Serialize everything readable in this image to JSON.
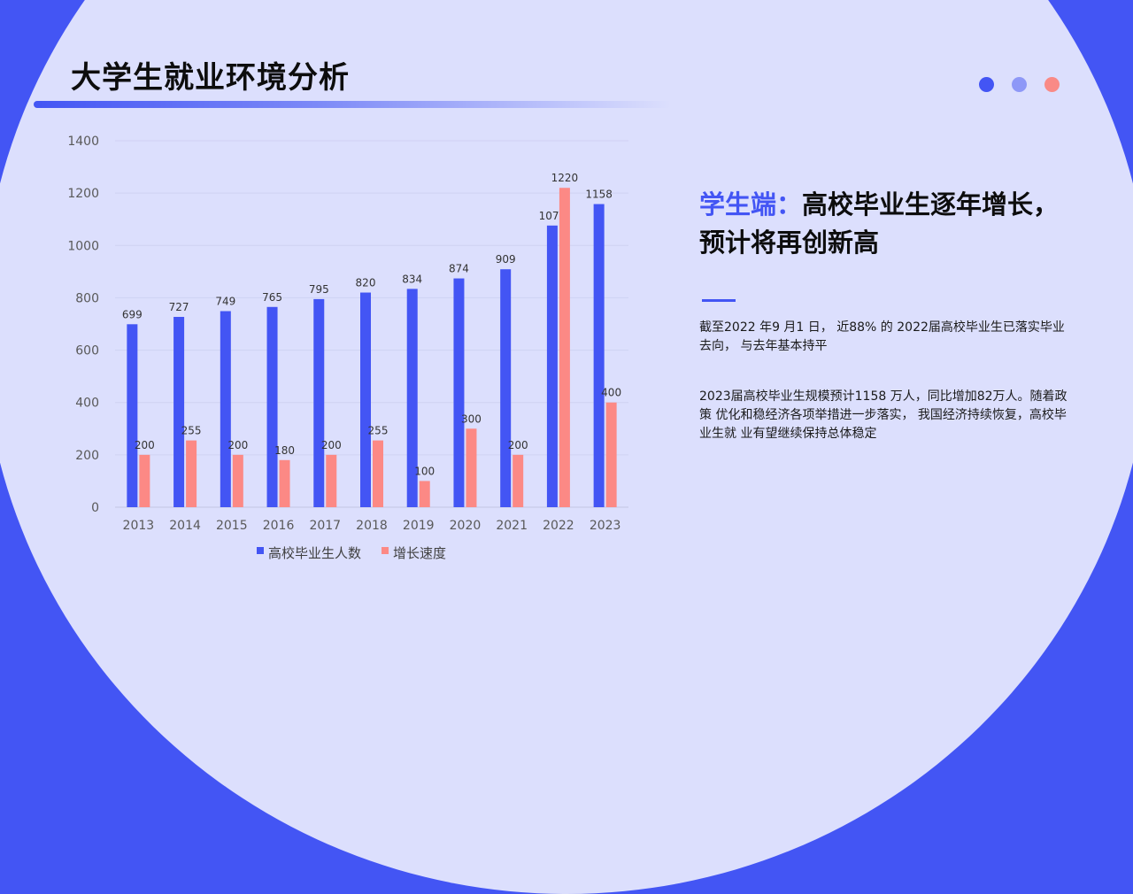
{
  "page": {
    "title": "大学生就业环境分析",
    "heading_accent": "学生端：",
    "heading_rest": "高校毕业生逐年增长，预计将再创新高",
    "paragraph1": "截至2022 年9 月1 日， 近88% 的  2022届高校毕业生已落实毕业去向， 与去年基本持平",
    "paragraph2": "2023届高校毕业生规模预计1158  万人，同比增加82万人。随着政策 优化和稳经济各项举措进一步落实， 我国经济持续恢复，高校毕业生就 业有望继续保持总体稳定"
  },
  "colors": {
    "background": "#4355f4",
    "panel": "#dcdffd",
    "accent": "#4355f4",
    "series1": "#4355f4",
    "series2": "#fc8985"
  },
  "chart_data": {
    "type": "bar",
    "categories": [
      "2013",
      "2014",
      "2015",
      "2016",
      "2017",
      "2018",
      "2019",
      "2020",
      "2021",
      "2022",
      "2023"
    ],
    "series": [
      {
        "name": "高校毕业生人数",
        "values": [
          699,
          727,
          749,
          765,
          795,
          820,
          834,
          874,
          909,
          1076,
          1158
        ]
      },
      {
        "name": "增长速度",
        "values": [
          200,
          255,
          200,
          180,
          200,
          255,
          100,
          300,
          200,
          1220,
          400
        ]
      }
    ],
    "yticks": [
      0,
      200,
      400,
      600,
      800,
      1000,
      1200,
      1400
    ],
    "ylim": [
      0,
      1400
    ],
    "grid": true,
    "legend": "bottom",
    "data_labels": true
  }
}
